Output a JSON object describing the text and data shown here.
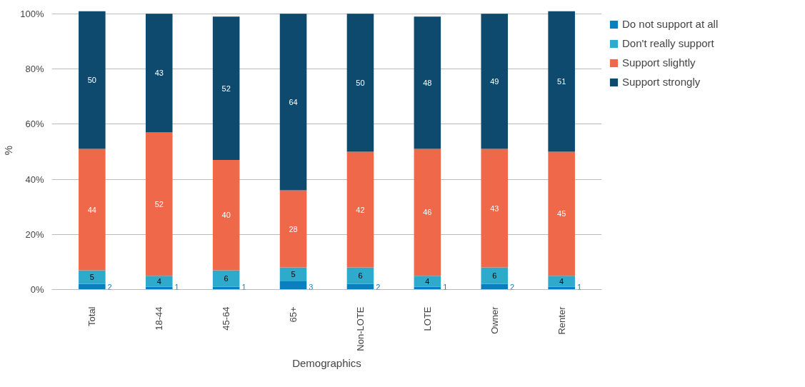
{
  "chart_data": {
    "type": "bar",
    "stacked": true,
    "xlabel": "Demographics",
    "ylabel": "%",
    "categories": [
      "Total",
      "18-44",
      "45-64",
      "65+",
      "Non-LOTE",
      "LOTE",
      "Owner",
      "Renter"
    ],
    "series": [
      {
        "name": "Do not support at all",
        "color": "#0a7fc0",
        "values": [
          2,
          1,
          1,
          3,
          2,
          1,
          2,
          1
        ]
      },
      {
        "name": "Don't really support",
        "color": "#2eaacc",
        "values": [
          5,
          4,
          6,
          5,
          6,
          4,
          6,
          4
        ]
      },
      {
        "name": "Support slightly",
        "color": "#f0684a",
        "values": [
          44,
          52,
          40,
          28,
          42,
          46,
          43,
          45
        ]
      },
      {
        "name": "Support strongly",
        "color": "#0d4a6e",
        "values": [
          50,
          43,
          52,
          64,
          50,
          48,
          49,
          51
        ]
      }
    ],
    "ylim": [
      0,
      101
    ],
    "yticks": [
      {
        "value": 0,
        "label": "0%"
      },
      {
        "value": 20,
        "label": "20%"
      },
      {
        "value": 40,
        "label": "40%"
      },
      {
        "value": 60,
        "label": "60%"
      },
      {
        "value": 80,
        "label": "80%"
      },
      {
        "value": 100,
        "label": "100%"
      }
    ],
    "grid": "y",
    "legend": "right",
    "data_labels": true
  }
}
